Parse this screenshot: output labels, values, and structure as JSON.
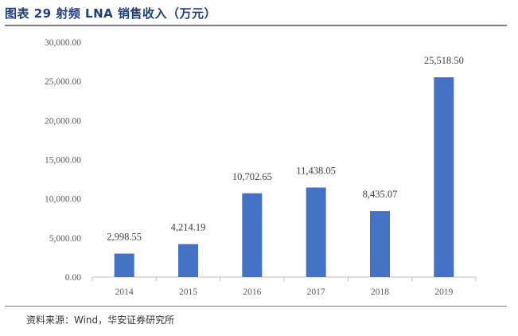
{
  "header": {
    "title": "图表 29 射频 LNA 销售收入（万元）"
  },
  "footer": {
    "source": "资料来源：Wind，华安证券研究所"
  },
  "colors": {
    "bar": "#4472c4",
    "axis": "#bfbfbf",
    "title": "#1f3f7a"
  },
  "chart_data": {
    "type": "bar",
    "title": "射频 LNA 销售收入（万元）",
    "categories": [
      "2014",
      "2015",
      "2016",
      "2017",
      "2018",
      "2019"
    ],
    "values": [
      2998.55,
      4214.19,
      10702.65,
      11438.05,
      8435.07,
      25518.5
    ],
    "value_labels": [
      "2,998.55",
      "4,214.19",
      "10,702.65",
      "11,438.05",
      "8,435.07",
      "25,518.50"
    ],
    "yticks": [
      0,
      5000,
      10000,
      15000,
      20000,
      25000,
      30000
    ],
    "ytick_labels": [
      "0.00",
      "5,000.00",
      "10,000.00",
      "15,000.00",
      "20,000.00",
      "25,000.00",
      "30,000.00"
    ],
    "ylim": [
      0,
      30000
    ],
    "xlabel": "",
    "ylabel": "",
    "grid": false,
    "legend": "none"
  }
}
